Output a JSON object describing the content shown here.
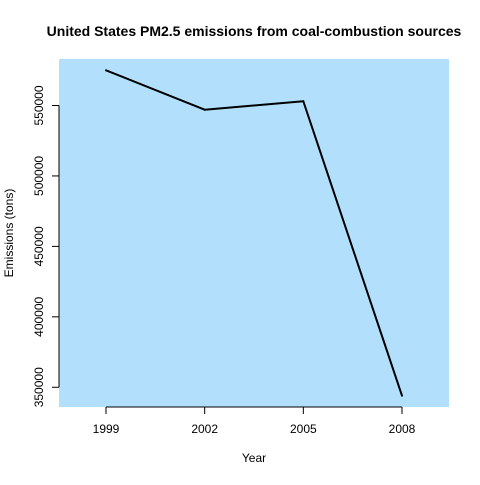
{
  "chart_data": {
    "type": "line",
    "title": "United States PM2.5 emissions from coal-combustion sources",
    "xlabel": "Year",
    "ylabel": "Emissions (tons)",
    "x": [
      1999,
      2002,
      2005,
      2008
    ],
    "x_tick_labels": [
      "1999",
      "2002",
      "2005",
      "2008"
    ],
    "series": [
      {
        "values": [
          575000,
          547000,
          553000,
          344000
        ]
      }
    ],
    "y_ticks": [
      350000,
      400000,
      450000,
      500000,
      550000
    ],
    "y_tick_labels": [
      "350000",
      "400000",
      "450000",
      "500000",
      "550000"
    ],
    "ylim": [
      336000,
      583000
    ],
    "grid": false,
    "plot_background": "#b2e0fc",
    "line_color": "#000000"
  }
}
